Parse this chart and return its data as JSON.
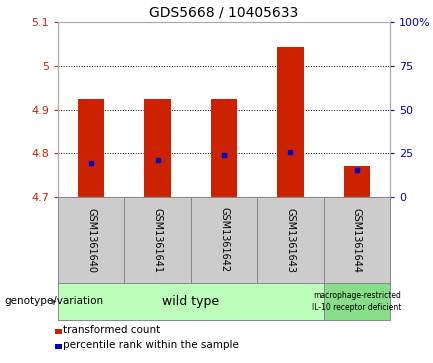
{
  "title": "GDS5668 / 10405633",
  "samples": [
    "GSM1361640",
    "GSM1361641",
    "GSM1361642",
    "GSM1361643",
    "GSM1361644"
  ],
  "bar_bottom": 4.7,
  "bar_tops": [
    4.924,
    4.924,
    4.924,
    5.042,
    4.772
  ],
  "blue_dots": [
    4.778,
    4.784,
    4.796,
    4.802,
    4.762
  ],
  "ylim_left": [
    4.7,
    5.1
  ],
  "ylim_right": [
    0,
    100
  ],
  "right_ticks": [
    0,
    25,
    50,
    75,
    100
  ],
  "right_tick_labels": [
    "0",
    "25",
    "50",
    "75",
    "100%"
  ],
  "left_ticks": [
    4.7,
    4.8,
    4.9,
    5.0,
    5.1
  ],
  "left_tick_labels": [
    "4.7",
    "4.8",
    "4.9",
    "5",
    "5.1"
  ],
  "bar_color": "#cc2200",
  "dot_color": "#0000cc",
  "wt_group_color": "#bbffbb",
  "mac_group_color": "#88dd88",
  "sample_bg_color": "#cccccc",
  "plot_bg_color": "#ffffff",
  "legend_items": [
    {
      "color": "#cc2200",
      "label": "transformed count"
    },
    {
      "color": "#0000cc",
      "label": "percentile rank within the sample"
    }
  ],
  "bar_width": 0.4,
  "genotype_label": "genotype/variation"
}
